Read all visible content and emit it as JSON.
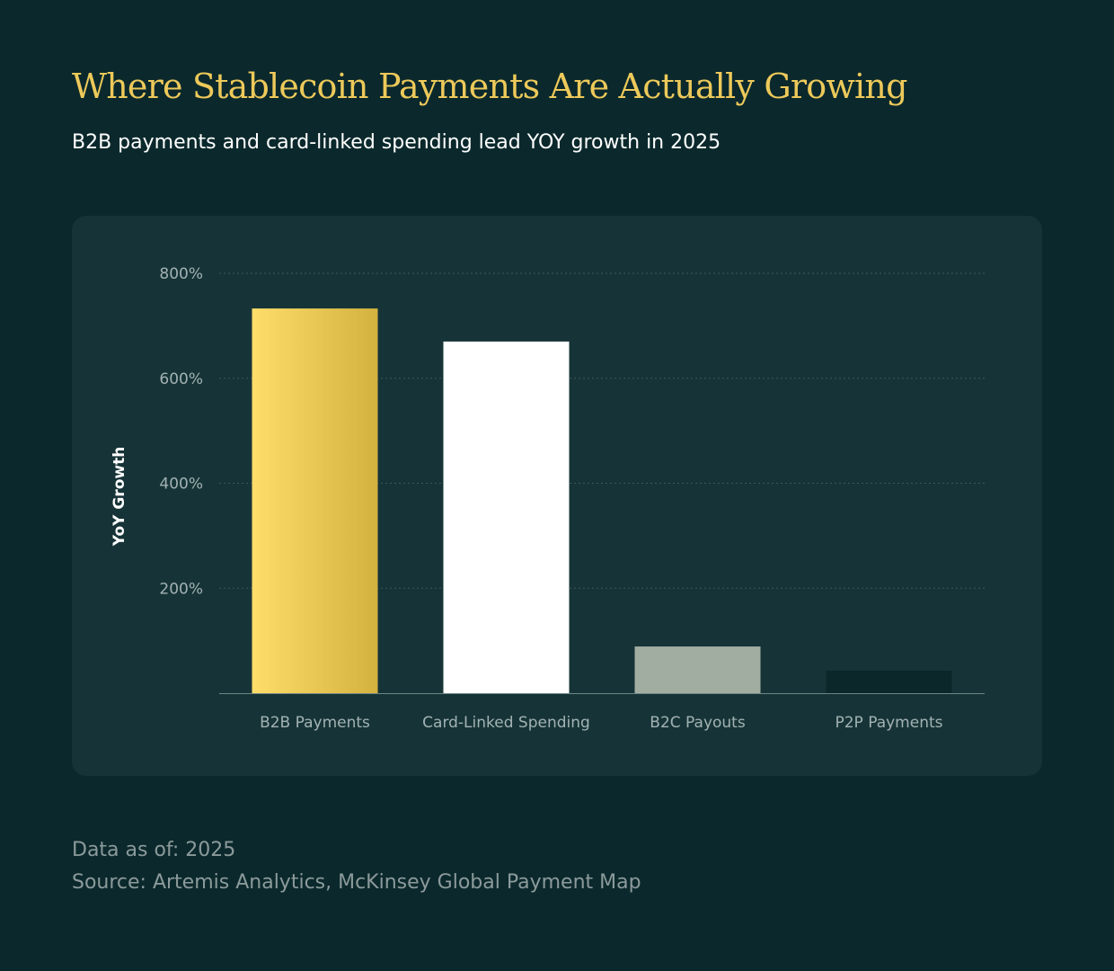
{
  "header": {
    "title": "Where Stablecoin Payments Are Actually Growing",
    "subtitle": "B2B payments and card-linked spending lead YOY growth in 2025"
  },
  "footer": {
    "data_as_of": "Data as of: 2025",
    "source": "Source: Artemis Analytics, McKinsey Global Payment Map"
  },
  "chart_data": {
    "type": "bar",
    "title": "",
    "xlabel": "",
    "ylabel": "YoY Growth",
    "categories": [
      "B2B Payments",
      "Card-Linked Spending",
      "B2C Payouts",
      "P2P Payments"
    ],
    "values": [
      733,
      670,
      89,
      43
    ],
    "ylim": [
      0,
      800
    ],
    "yticks": [
      200,
      400,
      600,
      800
    ],
    "ytick_labels": [
      "200%",
      "400%",
      "600%",
      "800%"
    ],
    "grid": true,
    "legend": "none",
    "colors": {
      "B2B Payments": [
        "#ffdd6a",
        "#d4b240"
      ],
      "Card-Linked Spending": [
        "#ffffff",
        "#ffffff"
      ],
      "B2C Payouts": [
        "#a2ada2",
        "#a2ada2"
      ],
      "P2P Payments": [
        "#0b2729",
        "#0b2729"
      ]
    }
  }
}
